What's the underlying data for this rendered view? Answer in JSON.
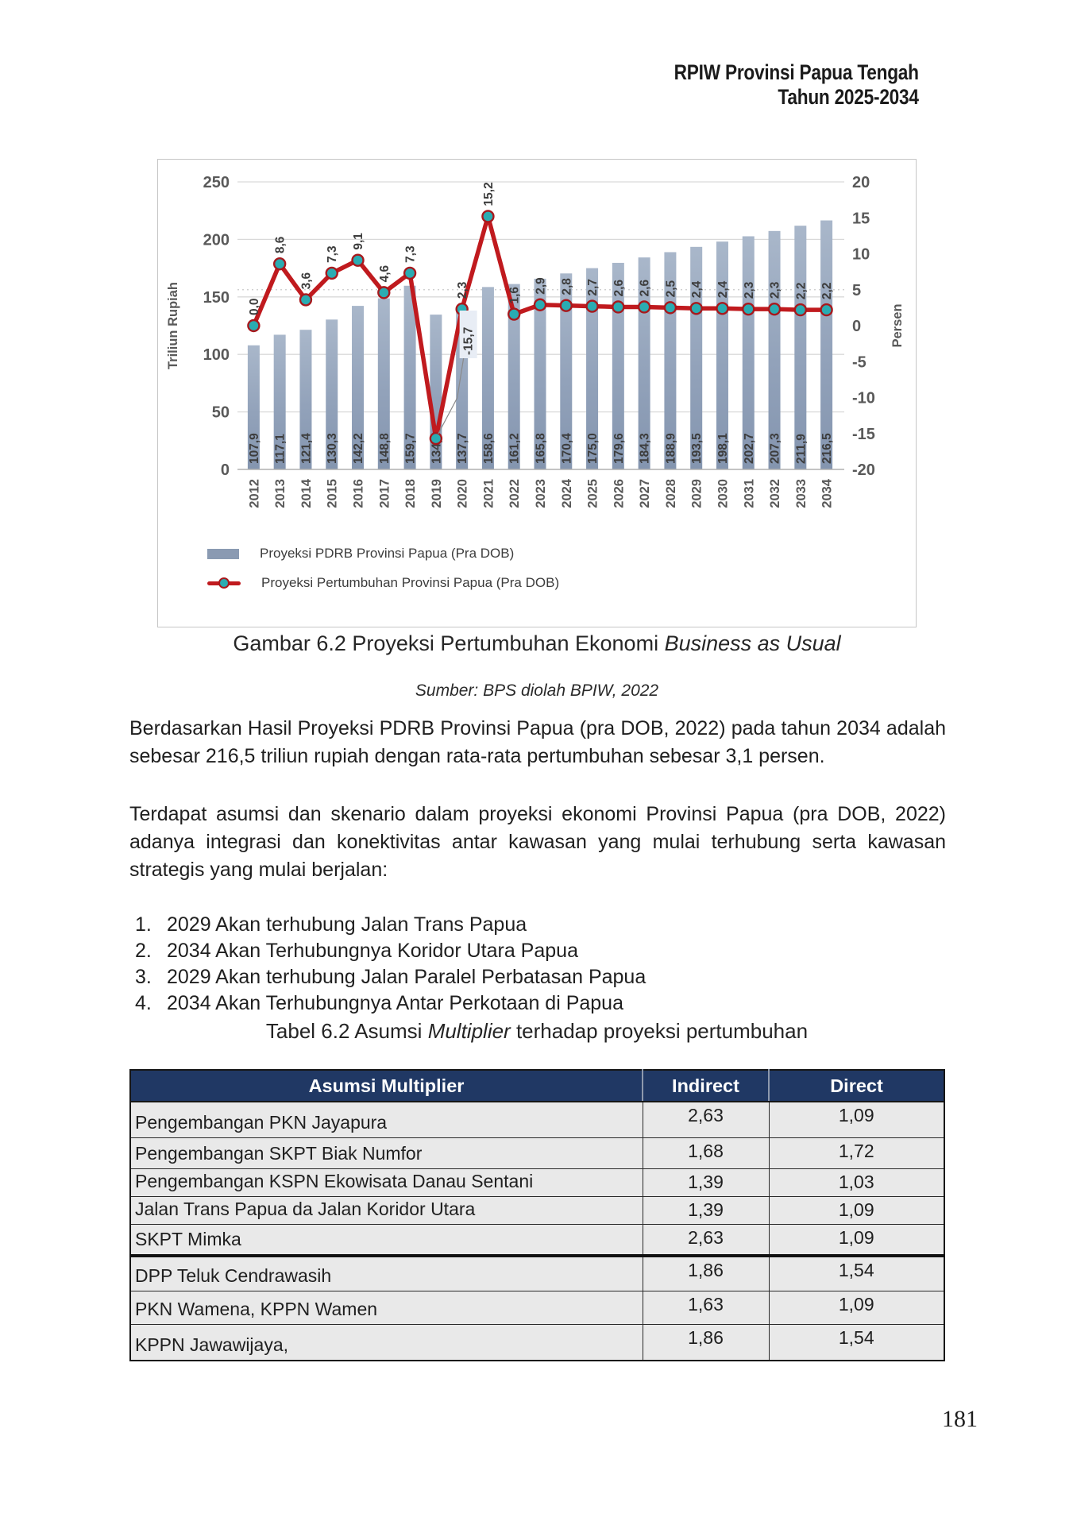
{
  "page": {
    "header_line1": "RPIW Provinsi Papua Tengah",
    "header_line2": "Tahun 2025-2034",
    "page_number": "181"
  },
  "figure": {
    "caption_prefix": "Gambar 6.2 Proyeksi Pertumbuhan Ekonomi ",
    "caption_italic": "Business as Usual",
    "source": "Sumber: BPS diolah BPIW, 2022"
  },
  "chart_data": {
    "type": "combo-bar-line",
    "categories": [
      "2012",
      "2013",
      "2014",
      "2015",
      "2016",
      "2017",
      "2018",
      "2019",
      "2020",
      "2021",
      "2022",
      "2023",
      "2024",
      "2025",
      "2026",
      "2027",
      "2028",
      "2029",
      "2030",
      "2031",
      "2032",
      "2033",
      "2034"
    ],
    "series": [
      {
        "name": "Proyeksi PDRB Provinsi Papua (Pra DOB)",
        "type": "bar",
        "axis": "left",
        "values": [
          107.9,
          117.1,
          121.4,
          130.3,
          142.2,
          148.8,
          159.7,
          134.6,
          137.7,
          158.6,
          161.2,
          165.8,
          170.4,
          175.0,
          179.6,
          184.3,
          188.9,
          193.5,
          198.1,
          202.7,
          207.3,
          211.9,
          216.5
        ],
        "labels": [
          "107,9",
          "117,1",
          "121,4",
          "130,3",
          "142,2",
          "148,8",
          "159,7",
          "134,6",
          "137,7",
          "158,6",
          "161,2",
          "165,8",
          "170,4",
          "175,0",
          "179,6",
          "184,3",
          "188,9",
          "193,5",
          "198,1",
          "202,7",
          "207,3",
          "211,9",
          "216,5"
        ]
      },
      {
        "name": "Proyeksi Pertumbuhan Provinsi Papua (Pra DOB)",
        "type": "line",
        "axis": "right",
        "values": [
          0.0,
          8.6,
          3.6,
          7.3,
          9.1,
          4.6,
          7.3,
          -15.7,
          2.3,
          15.2,
          1.6,
          2.9,
          2.8,
          2.7,
          2.6,
          2.6,
          2.5,
          2.4,
          2.4,
          2.3,
          2.3,
          2.2,
          2.2
        ],
        "labels": [
          "0,0",
          "8,6",
          "3,6",
          "7,3",
          "9,1",
          "4,6",
          "7,3",
          "-15,7",
          "2,3",
          "15,2",
          "1,6",
          "2,9",
          "2,8",
          "2,7",
          "2,6",
          "2,6",
          "2,5",
          "2,4",
          "2,4",
          "2,3",
          "2,3",
          "2,2",
          "2,2"
        ]
      }
    ],
    "left_axis": {
      "title": "Triliun Rupiah",
      "min": 0,
      "max": 250,
      "ticks": [
        "250",
        "200",
        "150",
        "100",
        "50",
        "0"
      ]
    },
    "right_axis": {
      "title": "Persen",
      "min": -20,
      "max": 20,
      "ticks": [
        "20",
        "15",
        "10",
        "5",
        "0",
        "-5",
        "-10",
        "-15",
        "-20"
      ]
    },
    "grid": true,
    "legend_position": "bottom-left",
    "colors": {
      "bar": "#8a9ab2",
      "line": "#c01a1e",
      "marker": "#2aacb2",
      "marker_ring": "#a8181c"
    }
  },
  "paragraphs": [
    "Berdasarkan Hasil Proyeksi PDRB Provinsi Papua (pra DOB, 2022) pada tahun 2034 adalah sebesar 216,5 triliun rupiah dengan rata-rata pertumbuhan sebesar 3,1 persen.",
    "Terdapat asumsi dan skenario dalam proyeksi ekonomi Provinsi Papua (pra DOB, 2022) adanya integrasi dan konektivitas antar kawasan yang mulai terhubung serta kawasan strategis yang mulai berjalan:"
  ],
  "list": [
    {
      "num": "1.",
      "text": "2029 Akan terhubung Jalan Trans Papua"
    },
    {
      "num": "2.",
      "text": "2034 Akan Terhubungnya Koridor Utara Papua"
    },
    {
      "num": "3.",
      "text": "2029 Akan terhubung Jalan Paralel Perbatasan Papua"
    },
    {
      "num": "4.",
      "text": "2034 Akan Terhubungnya Antar Perkotaan di Papua"
    }
  ],
  "table": {
    "caption_prefix": "Tabel 6.2 Asumsi ",
    "caption_italic": "Multiplier",
    "caption_suffix": " terhadap proyeksi pertumbuhan",
    "headers": [
      "Asumsi Multiplier",
      "Indirect",
      "Direct"
    ],
    "rows": [
      {
        "label": "Pengembangan PKN Jayapura",
        "indirect": "2,63",
        "direct": "1,09"
      },
      {
        "label": "Pengembangan SKPT Biak Numfor",
        "indirect": "1,68",
        "direct": "1,72"
      },
      {
        "label": "Pengembangan KSPN Ekowisata Danau Sentani",
        "indirect": "1,39",
        "direct": "1,03"
      },
      {
        "label": "Jalan Trans Papua da Jalan Koridor Utara",
        "indirect": "1,39",
        "direct": "1,09"
      },
      {
        "label": "SKPT Mimka",
        "indirect": "2,63",
        "direct": "1,09"
      },
      {
        "label": "DPP Teluk Cendrawasih",
        "indirect": "1,86",
        "direct": "1,54"
      },
      {
        "label": "PKN Wamena, KPPN Wamen",
        "indirect": "1,63",
        "direct": "1,09"
      },
      {
        "label": "KPPN Jawawijaya,",
        "indirect": "1,86",
        "direct": "1,54"
      }
    ]
  }
}
